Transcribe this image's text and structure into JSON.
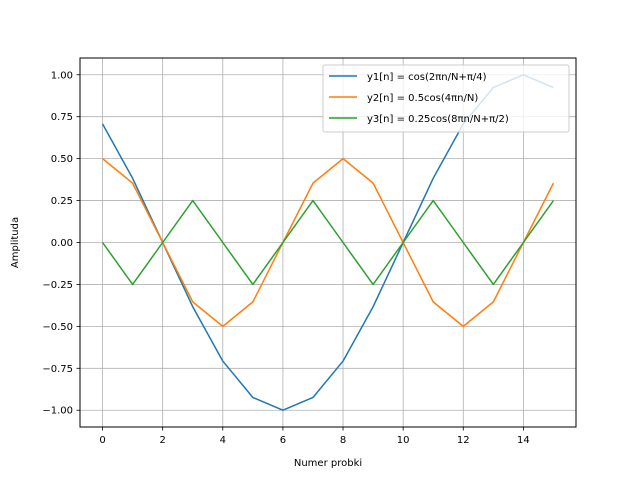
{
  "chart_data": {
    "type": "line",
    "title": "",
    "xlabel": "Numer probki",
    "ylabel": "Amplituda",
    "xlim": [
      -0.75,
      15.75
    ],
    "ylim": [
      -1.1,
      1.1
    ],
    "grid": true,
    "legend_placement": "top-right",
    "x_ticks": [
      0,
      2,
      4,
      6,
      8,
      10,
      12,
      14
    ],
    "x_tick_labels": [
      "0",
      "2",
      "4",
      "6",
      "8",
      "10",
      "12",
      "14"
    ],
    "y_ticks": [
      -1.0,
      -0.75,
      -0.5,
      -0.25,
      0.0,
      0.25,
      0.5,
      0.75,
      1.0
    ],
    "y_tick_labels": [
      "−1.00",
      "−0.75",
      "−0.50",
      "−0.25",
      "0.00",
      "0.25",
      "0.50",
      "0.75",
      "1.00"
    ],
    "x": [
      0,
      1,
      2,
      3,
      4,
      5,
      6,
      7,
      8,
      9,
      10,
      11,
      12,
      13,
      14,
      15
    ],
    "series": [
      {
        "name": "y1[n] = cos(2πn/N+π/4)",
        "color": "#1f77b4",
        "values": [
          0.707,
          0.383,
          0.0,
          -0.383,
          -0.707,
          -0.924,
          -1.0,
          -0.924,
          -0.707,
          -0.383,
          0.0,
          0.383,
          0.707,
          0.924,
          1.0,
          0.924
        ]
      },
      {
        "name": "y2[n] = 0.5cos(4πn/N)",
        "color": "#ff7f0e",
        "values": [
          0.5,
          0.354,
          0.0,
          -0.354,
          -0.5,
          -0.354,
          0.0,
          0.354,
          0.5,
          0.354,
          0.0,
          -0.354,
          -0.5,
          -0.354,
          0.0,
          0.354
        ]
      },
      {
        "name": "y3[n] = 0.25cos(8πn/N+π/2)",
        "color": "#2ca02c",
        "values": [
          0.0,
          -0.25,
          0.0,
          0.25,
          0.0,
          -0.25,
          0.0,
          0.25,
          0.0,
          -0.25,
          0.0,
          0.25,
          0.0,
          -0.25,
          0.0,
          0.25
        ]
      }
    ]
  }
}
